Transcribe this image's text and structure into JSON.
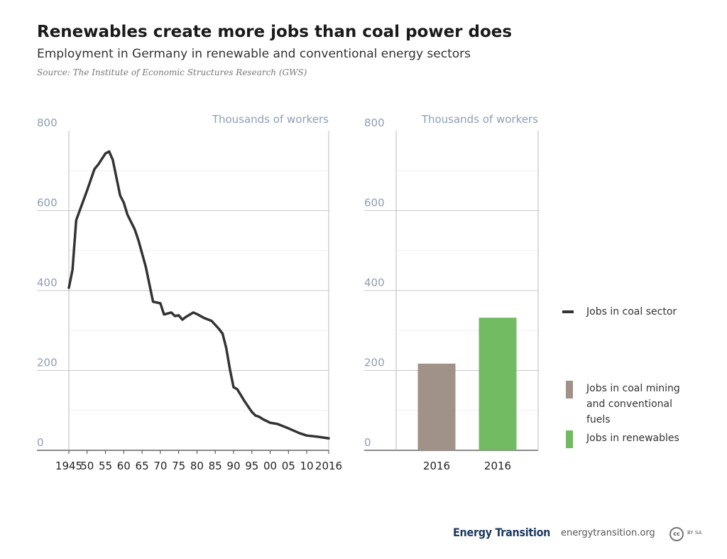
{
  "header": {
    "title": "Renewables create more jobs than coal power does",
    "subtitle": "Employment in Germany in renewable and conventional energy sectors",
    "source": "Source: The Institute of Economic Structures Research (GWS)"
  },
  "footer": {
    "brand": "Energy Transition",
    "url": "energytransition.org",
    "cc": "cc",
    "license": "BY SA"
  },
  "chart_data": [
    {
      "type": "line",
      "ylabel": "Thousands of workers",
      "x": [
        1945,
        1946,
        1947,
        1950,
        1952,
        1953,
        1955,
        1956,
        1957,
        1959,
        1960,
        1961,
        1963,
        1964,
        1966,
        1968,
        1970,
        1971,
        1973,
        1974,
        1975,
        1976,
        1977,
        1979,
        1980,
        1982,
        1984,
        1986,
        1987,
        1988,
        1989,
        1990,
        1991,
        1993,
        1995,
        1996,
        1997,
        1998,
        2000,
        2002,
        2005,
        2008,
        2010,
        2013,
        2016
      ],
      "series": [
        {
          "name": "Jobs in coal sector",
          "color": "#333333",
          "values": [
            407,
            452,
            576,
            651,
            704,
            715,
            743,
            748,
            727,
            638,
            620,
            590,
            553,
            526,
            460,
            372,
            368,
            340,
            345,
            336,
            338,
            327,
            334,
            345,
            341,
            331,
            324,
            304,
            292,
            256,
            203,
            158,
            153,
            123,
            96,
            87,
            84,
            78,
            69,
            66,
            55,
            43,
            37,
            34,
            30
          ]
        }
      ],
      "xlim": [
        1945,
        2016
      ],
      "xticks": [
        1945,
        {
          "value": 1950,
          "label": "50"
        },
        {
          "value": 1955,
          "label": "55"
        },
        {
          "value": 1960,
          "label": "60"
        },
        {
          "value": 1965,
          "label": "65"
        },
        {
          "value": 1970,
          "label": "70"
        },
        {
          "value": 1975,
          "label": "75"
        },
        {
          "value": 1980,
          "label": "80"
        },
        {
          "value": 1985,
          "label": "85"
        },
        {
          "value": 1990,
          "label": "90"
        },
        {
          "value": 1995,
          "label": "95"
        },
        {
          "value": 2000,
          "label": "00"
        },
        {
          "value": 2005,
          "label": "05"
        },
        {
          "value": 2010,
          "label": "10"
        },
        2016
      ],
      "ylim": [
        0,
        800
      ],
      "yticks": [
        0,
        200,
        400,
        600,
        800
      ],
      "minor_yticks": [
        100,
        300,
        500,
        700
      ],
      "grid": true
    },
    {
      "type": "bar",
      "ylabel": "Thousands of workers",
      "categories": [
        "2016",
        "2016"
      ],
      "series": [
        {
          "name": "Jobs in coal mining and conventional fuels",
          "color": "#a09189",
          "values": [
            217,
            null
          ]
        },
        {
          "name": "Jobs in renewables",
          "color": "#72bb62",
          "values": [
            null,
            332
          ]
        }
      ],
      "ylim": [
        0,
        800
      ],
      "yticks": [
        0,
        200,
        400,
        600,
        800
      ],
      "minor_yticks": [
        100,
        300,
        500,
        700
      ],
      "grid": true
    }
  ]
}
